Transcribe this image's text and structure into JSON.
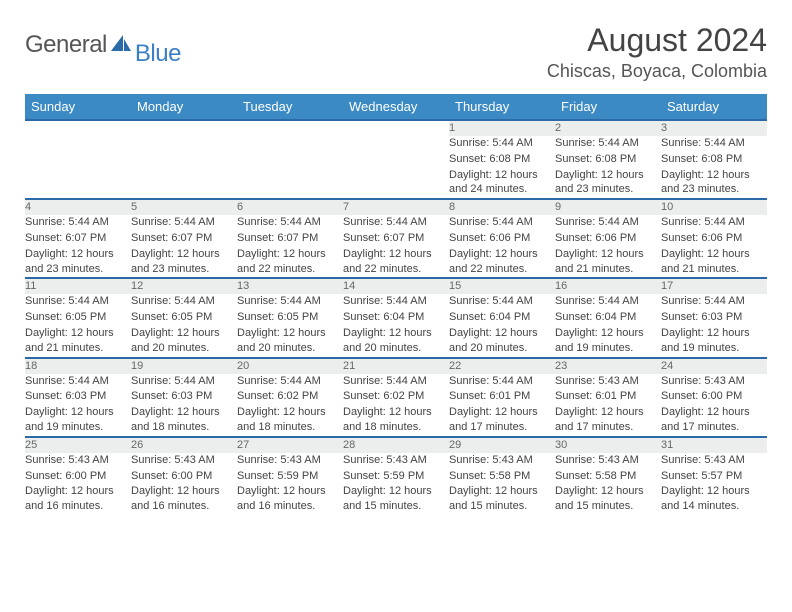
{
  "logo": {
    "general": "General",
    "blue": "Blue"
  },
  "title": "August 2024",
  "location": "Chiscas, Boyaca, Colombia",
  "colors": {
    "header_bg": "#3b8ac4",
    "header_text": "#ffffff",
    "row_border": "#2a6aa8",
    "daynum_bg": "#eceeee",
    "text": "#444444",
    "logo_blue": "#3b7fc4"
  },
  "day_labels": [
    "Sunday",
    "Monday",
    "Tuesday",
    "Wednesday",
    "Thursday",
    "Friday",
    "Saturday"
  ],
  "weeks": [
    [
      null,
      null,
      null,
      null,
      {
        "n": "1",
        "sr": "5:44 AM",
        "ss": "6:08 PM",
        "dl": "12 hours and 24 minutes."
      },
      {
        "n": "2",
        "sr": "5:44 AM",
        "ss": "6:08 PM",
        "dl": "12 hours and 23 minutes."
      },
      {
        "n": "3",
        "sr": "5:44 AM",
        "ss": "6:08 PM",
        "dl": "12 hours and 23 minutes."
      }
    ],
    [
      {
        "n": "4",
        "sr": "5:44 AM",
        "ss": "6:07 PM",
        "dl": "12 hours and 23 minutes."
      },
      {
        "n": "5",
        "sr": "5:44 AM",
        "ss": "6:07 PM",
        "dl": "12 hours and 23 minutes."
      },
      {
        "n": "6",
        "sr": "5:44 AM",
        "ss": "6:07 PM",
        "dl": "12 hours and 22 minutes."
      },
      {
        "n": "7",
        "sr": "5:44 AM",
        "ss": "6:07 PM",
        "dl": "12 hours and 22 minutes."
      },
      {
        "n": "8",
        "sr": "5:44 AM",
        "ss": "6:06 PM",
        "dl": "12 hours and 22 minutes."
      },
      {
        "n": "9",
        "sr": "5:44 AM",
        "ss": "6:06 PM",
        "dl": "12 hours and 21 minutes."
      },
      {
        "n": "10",
        "sr": "5:44 AM",
        "ss": "6:06 PM",
        "dl": "12 hours and 21 minutes."
      }
    ],
    [
      {
        "n": "11",
        "sr": "5:44 AM",
        "ss": "6:05 PM",
        "dl": "12 hours and 21 minutes."
      },
      {
        "n": "12",
        "sr": "5:44 AM",
        "ss": "6:05 PM",
        "dl": "12 hours and 20 minutes."
      },
      {
        "n": "13",
        "sr": "5:44 AM",
        "ss": "6:05 PM",
        "dl": "12 hours and 20 minutes."
      },
      {
        "n": "14",
        "sr": "5:44 AM",
        "ss": "6:04 PM",
        "dl": "12 hours and 20 minutes."
      },
      {
        "n": "15",
        "sr": "5:44 AM",
        "ss": "6:04 PM",
        "dl": "12 hours and 20 minutes."
      },
      {
        "n": "16",
        "sr": "5:44 AM",
        "ss": "6:04 PM",
        "dl": "12 hours and 19 minutes."
      },
      {
        "n": "17",
        "sr": "5:44 AM",
        "ss": "6:03 PM",
        "dl": "12 hours and 19 minutes."
      }
    ],
    [
      {
        "n": "18",
        "sr": "5:44 AM",
        "ss": "6:03 PM",
        "dl": "12 hours and 19 minutes."
      },
      {
        "n": "19",
        "sr": "5:44 AM",
        "ss": "6:03 PM",
        "dl": "12 hours and 18 minutes."
      },
      {
        "n": "20",
        "sr": "5:44 AM",
        "ss": "6:02 PM",
        "dl": "12 hours and 18 minutes."
      },
      {
        "n": "21",
        "sr": "5:44 AM",
        "ss": "6:02 PM",
        "dl": "12 hours and 18 minutes."
      },
      {
        "n": "22",
        "sr": "5:44 AM",
        "ss": "6:01 PM",
        "dl": "12 hours and 17 minutes."
      },
      {
        "n": "23",
        "sr": "5:43 AM",
        "ss": "6:01 PM",
        "dl": "12 hours and 17 minutes."
      },
      {
        "n": "24",
        "sr": "5:43 AM",
        "ss": "6:00 PM",
        "dl": "12 hours and 17 minutes."
      }
    ],
    [
      {
        "n": "25",
        "sr": "5:43 AM",
        "ss": "6:00 PM",
        "dl": "12 hours and 16 minutes."
      },
      {
        "n": "26",
        "sr": "5:43 AM",
        "ss": "6:00 PM",
        "dl": "12 hours and 16 minutes."
      },
      {
        "n": "27",
        "sr": "5:43 AM",
        "ss": "5:59 PM",
        "dl": "12 hours and 16 minutes."
      },
      {
        "n": "28",
        "sr": "5:43 AM",
        "ss": "5:59 PM",
        "dl": "12 hours and 15 minutes."
      },
      {
        "n": "29",
        "sr": "5:43 AM",
        "ss": "5:58 PM",
        "dl": "12 hours and 15 minutes."
      },
      {
        "n": "30",
        "sr": "5:43 AM",
        "ss": "5:58 PM",
        "dl": "12 hours and 15 minutes."
      },
      {
        "n": "31",
        "sr": "5:43 AM",
        "ss": "5:57 PM",
        "dl": "12 hours and 14 minutes."
      }
    ]
  ],
  "labels": {
    "sunrise": "Sunrise:",
    "sunset": "Sunset:",
    "daylight": "Daylight:"
  }
}
